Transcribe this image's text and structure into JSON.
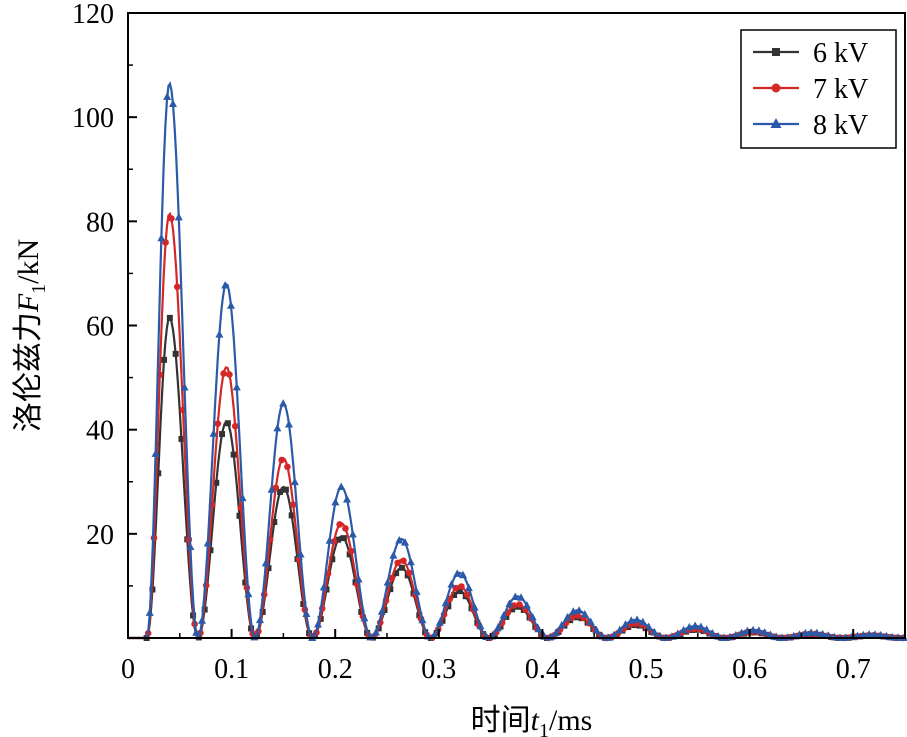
{
  "chart_data": {
    "type": "line",
    "title": "",
    "xlabel": {
      "main": "时间",
      "var": "t",
      "sub": "1",
      "unit": "/ms"
    },
    "ylabel": {
      "main": "洛伦兹力",
      "var": "F",
      "sub": "1",
      "unit": "/kN"
    },
    "xlim": [
      0,
      0.75
    ],
    "ylim": [
      0,
      120
    ],
    "xticks": [
      0,
      0.1,
      0.2,
      0.3,
      0.4,
      0.5,
      0.6,
      0.7
    ],
    "xtick_labels": [
      "0",
      "0.1",
      "0.2",
      "0.3",
      "0.4",
      "0.5",
      "0.6",
      "0.7"
    ],
    "yticks": [
      20,
      40,
      60,
      80,
      100,
      120
    ],
    "ytick_labels": [
      "20",
      "40",
      "60",
      "80",
      "100",
      "120"
    ],
    "grid": false,
    "legend_position": "top-right",
    "series": [
      {
        "name": "6 kV",
        "color": "#333333",
        "marker": "square",
        "peaks": [
          {
            "t": 0.04,
            "value": 61.5
          },
          {
            "t": 0.095,
            "value": 41.5
          },
          {
            "t": 0.15,
            "value": 29
          },
          {
            "t": 0.206,
            "value": 19.5
          },
          {
            "t": 0.264,
            "value": 13.5
          },
          {
            "t": 0.32,
            "value": 9
          },
          {
            "t": 0.376,
            "value": 6
          },
          {
            "t": 0.434,
            "value": 4
          },
          {
            "t": 0.49,
            "value": 2.5
          },
          {
            "t": 0.548,
            "value": 1.6
          },
          {
            "t": 0.604,
            "value": 1.1
          },
          {
            "t": 0.66,
            "value": 0.7
          },
          {
            "t": 0.718,
            "value": 0.45
          }
        ]
      },
      {
        "name": "7 kV",
        "color": "#d62728",
        "marker": "circle",
        "peaks": [
          {
            "t": 0.04,
            "value": 81.5
          },
          {
            "t": 0.095,
            "value": 52
          },
          {
            "t": 0.15,
            "value": 34.5
          },
          {
            "t": 0.206,
            "value": 22
          },
          {
            "t": 0.264,
            "value": 15
          },
          {
            "t": 0.32,
            "value": 10
          },
          {
            "t": 0.376,
            "value": 6.5
          },
          {
            "t": 0.434,
            "value": 4.3
          },
          {
            "t": 0.49,
            "value": 2.8
          },
          {
            "t": 0.548,
            "value": 1.8
          },
          {
            "t": 0.604,
            "value": 1.2
          },
          {
            "t": 0.66,
            "value": 0.8
          },
          {
            "t": 0.718,
            "value": 0.5
          }
        ]
      },
      {
        "name": "8 kV",
        "color": "#2b5aa8",
        "marker": "triangle",
        "peaks": [
          {
            "t": 0.04,
            "value": 106.5
          },
          {
            "t": 0.095,
            "value": 68
          },
          {
            "t": 0.15,
            "value": 45
          },
          {
            "t": 0.206,
            "value": 29
          },
          {
            "t": 0.264,
            "value": 19
          },
          {
            "t": 0.32,
            "value": 12.5
          },
          {
            "t": 0.376,
            "value": 8
          },
          {
            "t": 0.434,
            "value": 5.3
          },
          {
            "t": 0.49,
            "value": 3.5
          },
          {
            "t": 0.548,
            "value": 2.3
          },
          {
            "t": 0.604,
            "value": 1.5
          },
          {
            "t": 0.66,
            "value": 1
          },
          {
            "t": 0.718,
            "value": 0.65
          }
        ]
      }
    ]
  }
}
